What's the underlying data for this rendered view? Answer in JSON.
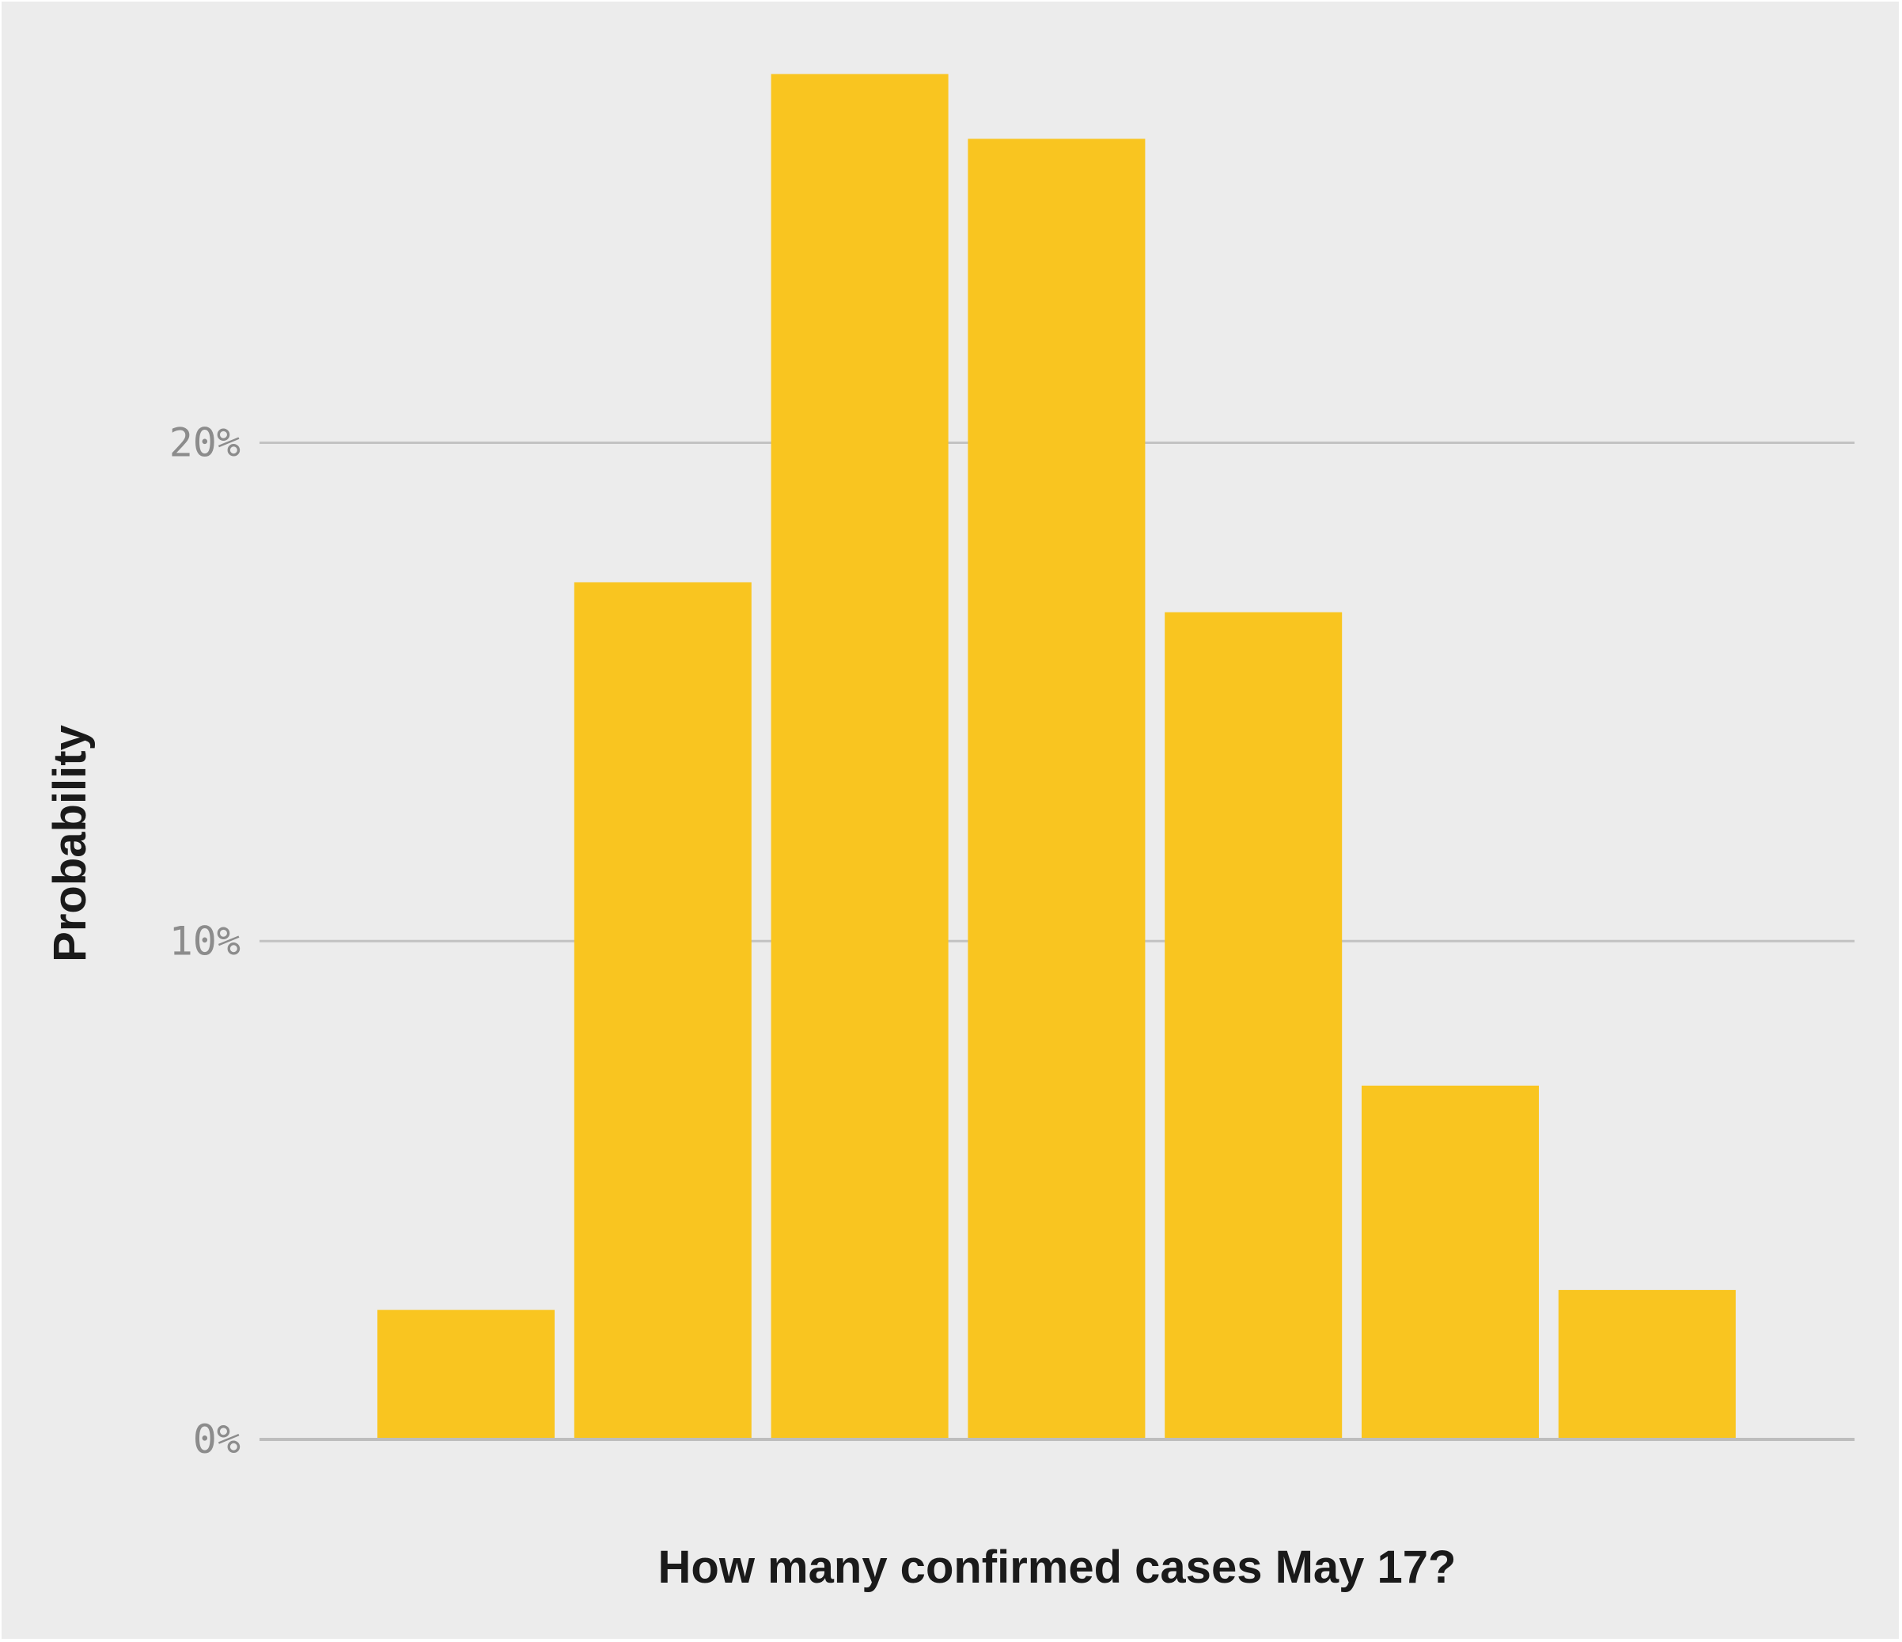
{
  "chart_data": {
    "type": "bar",
    "title": "",
    "xlabel": "How many confirmed cases May 17?",
    "ylabel": "Probability",
    "categories": [
      "",
      "",
      "",
      "",
      "",
      "",
      ""
    ],
    "values": [
      2.6,
      17.2,
      27.4,
      26.1,
      16.6,
      7.1,
      3.0
    ],
    "ylim": [
      0,
      28.6
    ],
    "yticks": [
      0,
      10,
      20
    ],
    "ytick_labels": [
      "0%",
      "10%",
      "20%"
    ],
    "grid": true,
    "legend": "none",
    "colors": {
      "bar": "#f9c520",
      "background": "#ececec",
      "grid": "#c2c2c2",
      "tick_text": "#8c8c8c",
      "label_text": "#1a1a1a"
    }
  }
}
